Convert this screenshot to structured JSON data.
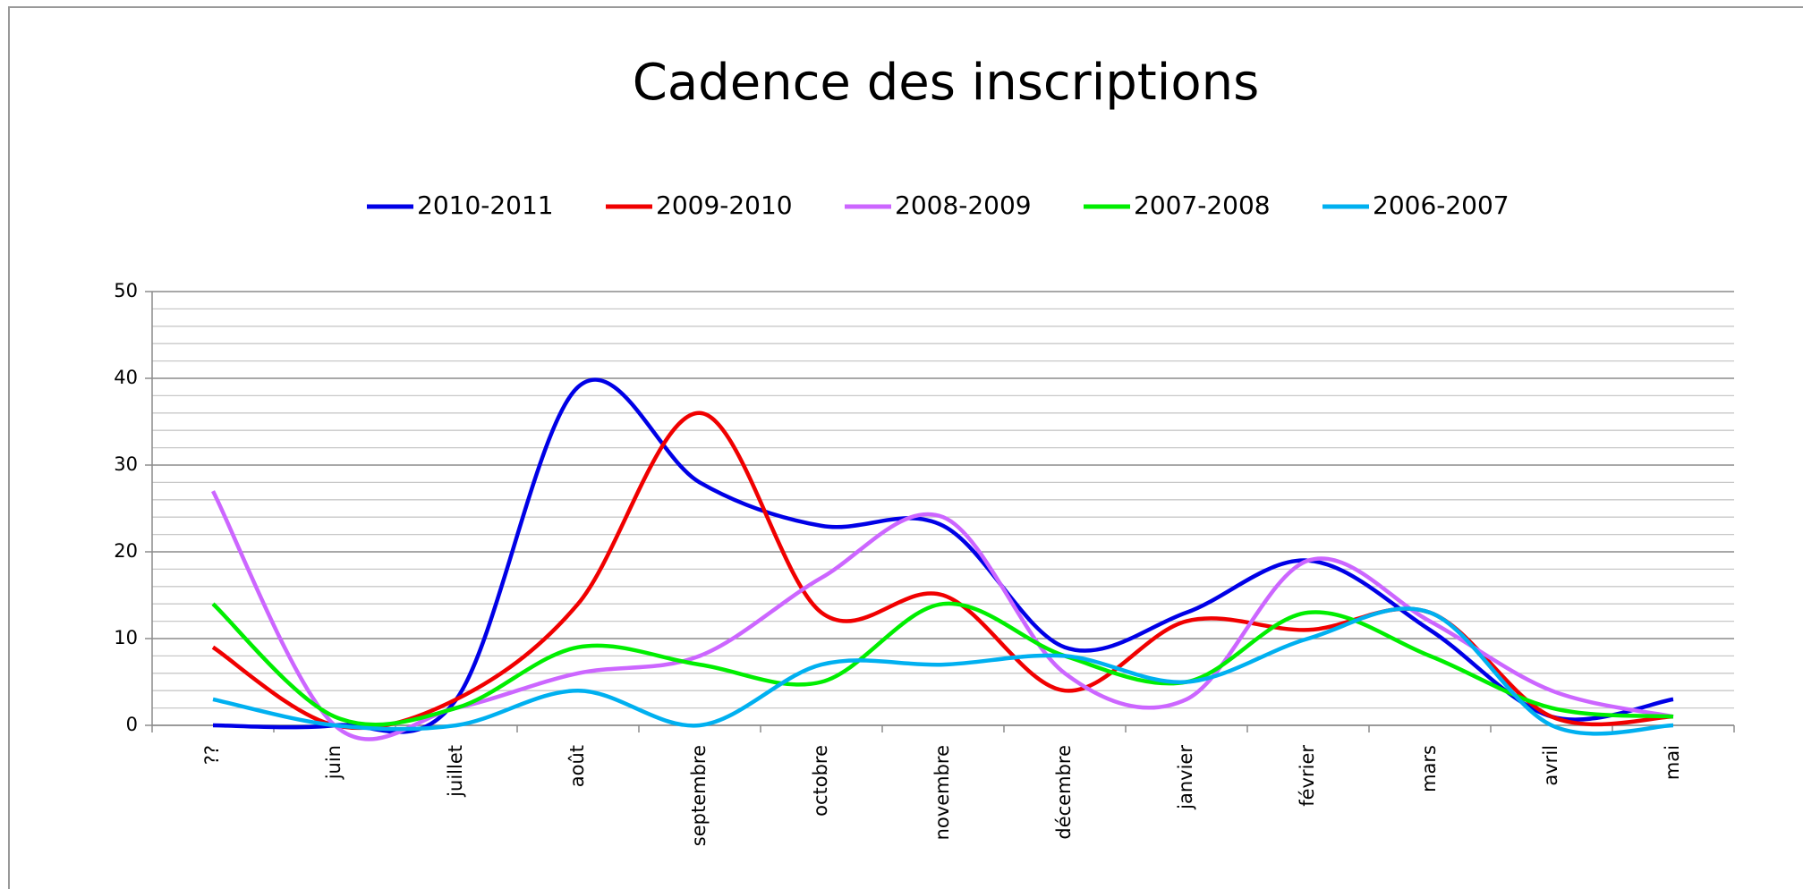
{
  "chart_data": {
    "type": "line",
    "title": "Cadence des inscriptions",
    "categories": [
      "??",
      "juin",
      "juillet",
      "août",
      "septembre",
      "octobre",
      "novembre",
      "décembre",
      "janvier",
      "février",
      "mars",
      "avril",
      "mai"
    ],
    "series": [
      {
        "name": "2010-2011",
        "color": "#0000e6",
        "values": [
          0,
          0,
          3,
          39,
          28,
          23,
          23,
          9,
          13,
          19,
          11,
          1,
          3
        ]
      },
      {
        "name": "2009-2010",
        "color": "#f00000",
        "values": [
          9,
          0,
          3,
          14,
          36,
          13,
          15,
          4,
          12,
          11,
          13,
          1,
          1
        ]
      },
      {
        "name": "2008-2009",
        "color": "#cc66ff",
        "values": [
          27,
          0,
          2,
          6,
          8,
          17,
          24,
          6,
          3,
          19,
          12,
          4,
          1
        ]
      },
      {
        "name": "2007-2008",
        "color": "#00ee00",
        "values": [
          14,
          1,
          2,
          9,
          7,
          5,
          14,
          8,
          5,
          13,
          8,
          2,
          1
        ]
      },
      {
        "name": "2006-2007",
        "color": "#00b0f0",
        "values": [
          3,
          0,
          0,
          4,
          0,
          7,
          7,
          8,
          5,
          10,
          13,
          0,
          0
        ]
      }
    ],
    "ylim": [
      0,
      50
    ],
    "yticks": [
      0,
      10,
      20,
      30,
      40,
      50
    ],
    "minor_yticks": [
      2,
      4,
      6,
      8,
      12,
      14,
      16,
      18,
      22,
      24,
      26,
      28,
      32,
      34,
      36,
      38,
      42,
      44,
      46,
      48
    ],
    "grid": true,
    "smooth": true,
    "legend": "top"
  }
}
